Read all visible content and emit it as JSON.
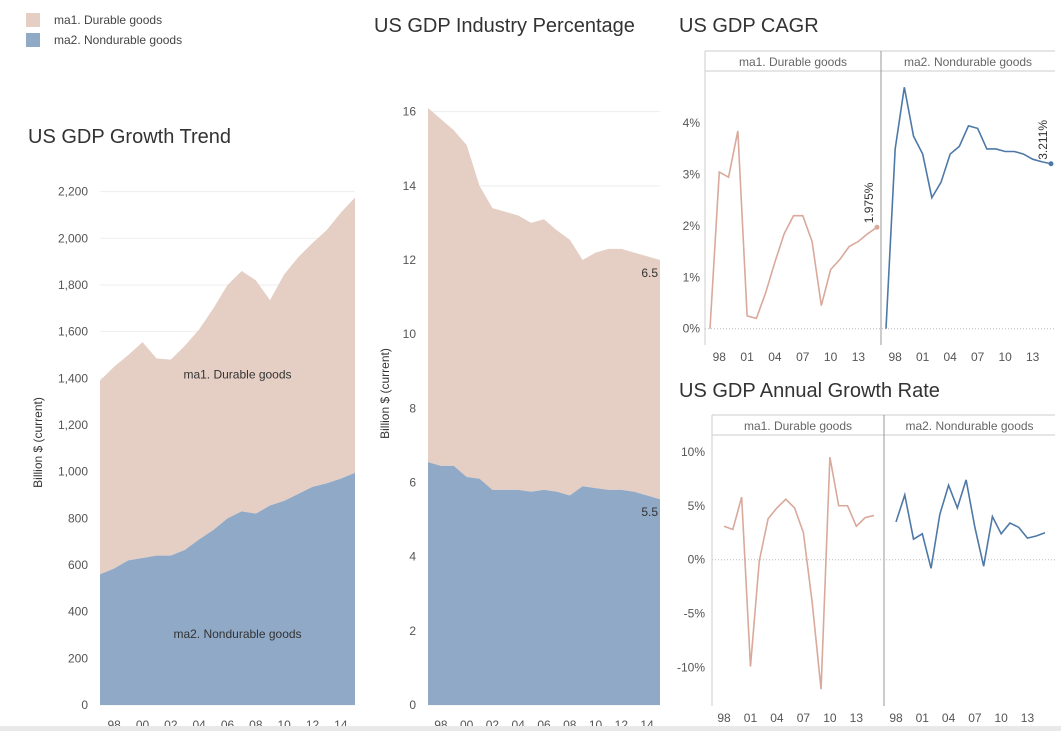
{
  "legend": {
    "items": [
      {
        "label": "ma1. Durable goods",
        "color": "#e5cfc4"
      },
      {
        "label": "ma2. Nondurable goods",
        "color": "#8fa9c7"
      }
    ]
  },
  "titles": {
    "growth": "US GDP Growth Trend",
    "percentage": "US GDP Industry Percentage",
    "cagr": "US GDP CAGR",
    "annual": "US GDP Annual Growth Rate"
  },
  "colors": {
    "durable_fill": "#e5cfc4",
    "nondurable_fill": "#8fa9c7",
    "durable_line": "#d9a99b",
    "nondurable_line": "#4e79a7",
    "grid": "#eeeeee",
    "border": "#cccccc"
  },
  "chart_data": [
    {
      "id": "growth",
      "type": "area",
      "title": "US GDP Growth Trend",
      "ylabel": "Billion $ (current)",
      "xlabel": "",
      "x": [
        1997,
        1998,
        1999,
        2000,
        2001,
        2002,
        2003,
        2004,
        2005,
        2006,
        2007,
        2008,
        2009,
        2010,
        2011,
        2012,
        2013,
        2014,
        2015
      ],
      "xticks": [
        "98",
        "00",
        "02",
        "04",
        "06",
        "08",
        "10",
        "12",
        "14"
      ],
      "xtick_values": [
        1998,
        2000,
        2002,
        2004,
        2006,
        2008,
        2010,
        2012,
        2014
      ],
      "yticks": [
        "0",
        "200",
        "400",
        "600",
        "800",
        "1,000",
        "1,200",
        "1,400",
        "1,600",
        "1,800",
        "2,000",
        "2,200"
      ],
      "ylim": [
        0,
        2250
      ],
      "stacked": true,
      "series": [
        {
          "name": "ma2. Nondurable goods",
          "label": "ma2. Nondurable goods",
          "values": [
            560,
            585,
            620,
            630,
            640,
            640,
            665,
            710,
            750,
            800,
            830,
            820,
            855,
            875,
            905,
            935,
            950,
            970,
            995
          ]
        },
        {
          "name": "ma1. Durable goods",
          "label": "ma1. Durable goods",
          "values": [
            830,
            865,
            880,
            925,
            845,
            840,
            875,
            900,
            950,
            1000,
            1030,
            1000,
            880,
            970,
            1015,
            1045,
            1085,
            1140,
            1180
          ]
        }
      ]
    },
    {
      "id": "percentage",
      "type": "area",
      "title": "US GDP Industry Percentage",
      "ylabel": "Billion $ (current)",
      "xlabel": "",
      "x": [
        1997,
        1998,
        1999,
        2000,
        2001,
        2002,
        2003,
        2004,
        2005,
        2006,
        2007,
        2008,
        2009,
        2010,
        2011,
        2012,
        2013,
        2014,
        2015
      ],
      "xticks": [
        "98",
        "00",
        "02",
        "04",
        "06",
        "08",
        "10",
        "12",
        "14"
      ],
      "xtick_values": [
        1998,
        2000,
        2002,
        2004,
        2006,
        2008,
        2010,
        2012,
        2014
      ],
      "yticks": [
        "0",
        "2",
        "4",
        "6",
        "8",
        "10",
        "12",
        "14",
        "16"
      ],
      "ylim": [
        0,
        16.8
      ],
      "stacked": true,
      "end_labels": [
        "6.5",
        "5.5"
      ],
      "series": [
        {
          "name": "ma2. Nondurable goods",
          "values": [
            6.55,
            6.45,
            6.45,
            6.15,
            6.1,
            5.8,
            5.8,
            5.8,
            5.75,
            5.8,
            5.75,
            5.65,
            5.9,
            5.85,
            5.8,
            5.8,
            5.75,
            5.65,
            5.55
          ]
        },
        {
          "name": "ma1. Durable goods",
          "values": [
            9.55,
            9.35,
            9.05,
            8.95,
            7.9,
            7.6,
            7.5,
            7.4,
            7.25,
            7.3,
            7.05,
            6.9,
            6.1,
            6.35,
            6.5,
            6.5,
            6.45,
            6.45,
            6.45
          ]
        }
      ]
    },
    {
      "id": "cagr",
      "type": "line",
      "title": "US GDP CAGR",
      "panels": [
        "ma1. Durable goods",
        "ma2. Nondurable goods"
      ],
      "x": [
        1997,
        1998,
        1999,
        2000,
        2001,
        2002,
        2003,
        2004,
        2005,
        2006,
        2007,
        2008,
        2009,
        2010,
        2011,
        2012,
        2013,
        2014,
        2015
      ],
      "xticks": [
        "98",
        "01",
        "04",
        "07",
        "10",
        "13"
      ],
      "xtick_values": [
        1998,
        2001,
        2004,
        2007,
        2010,
        2013
      ],
      "yticks": [
        "0%",
        "1%",
        "2%",
        "3%",
        "4%"
      ],
      "ytick_values": [
        0,
        1,
        2,
        3,
        4
      ],
      "ylim": [
        -0.2,
        4.9
      ],
      "series": [
        {
          "name": "ma1. Durable goods",
          "end_label": "1.975%",
          "values": [
            0,
            3.05,
            2.95,
            3.85,
            0.25,
            0.2,
            0.7,
            1.3,
            1.85,
            2.2,
            2.2,
            1.7,
            0.45,
            1.15,
            1.35,
            1.6,
            1.7,
            1.85,
            1.975
          ]
        },
        {
          "name": "ma2. Nondurable goods",
          "end_label": "3.211%",
          "values": [
            0,
            3.5,
            4.7,
            3.75,
            3.4,
            2.55,
            2.85,
            3.4,
            3.55,
            3.95,
            3.9,
            3.5,
            3.5,
            3.45,
            3.45,
            3.4,
            3.3,
            3.25,
            3.211
          ]
        }
      ]
    },
    {
      "id": "annual",
      "type": "line",
      "title": "US GDP Annual Growth Rate",
      "panels": [
        "ma1. Durable goods",
        "ma2. Nondurable goods"
      ],
      "x": [
        1998,
        1999,
        2000,
        2001,
        2002,
        2003,
        2004,
        2005,
        2006,
        2007,
        2008,
        2009,
        2010,
        2011,
        2012,
        2013,
        2014,
        2015
      ],
      "xticks": [
        "98",
        "01",
        "04",
        "07",
        "10",
        "13"
      ],
      "xtick_values": [
        1998,
        2001,
        2004,
        2007,
        2010,
        2013
      ],
      "yticks": [
        "10%",
        "5%",
        "0%",
        "-5%",
        "-10%"
      ],
      "ytick_values": [
        10,
        5,
        0,
        -5,
        -10
      ],
      "ylim": [
        -13,
        11
      ],
      "series": [
        {
          "name": "ma1. Durable goods",
          "values": [
            3.1,
            2.8,
            5.8,
            -9.9,
            -0.1,
            3.8,
            4.8,
            5.6,
            4.8,
            2.5,
            -4,
            -12,
            9.5,
            5,
            5,
            3.1,
            3.9,
            4.1
          ]
        },
        {
          "name": "ma2. Nondurable goods",
          "values": [
            3.5,
            6,
            1.9,
            2.4,
            -0.8,
            4.2,
            6.9,
            4.8,
            7.4,
            3,
            -0.6,
            4,
            2.4,
            3.4,
            3,
            2,
            2.2,
            2.5
          ]
        }
      ]
    }
  ]
}
